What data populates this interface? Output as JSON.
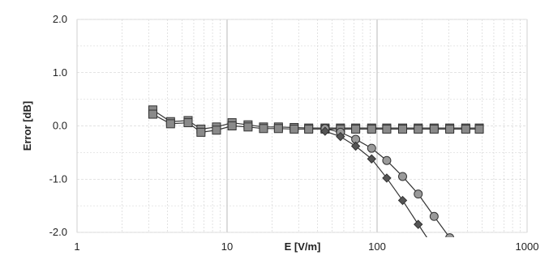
{
  "chart_data": {
    "type": "line",
    "xlabel": "E [V/m]",
    "ylabel": "Error [dB]",
    "xscale": "log",
    "xlim": [
      1,
      1000
    ],
    "ylim": [
      -2.0,
      2.0
    ],
    "x_tick_labels": [
      "1",
      "10",
      "100",
      "1000"
    ],
    "x_ticks": [
      1,
      10,
      100,
      1000
    ],
    "y_tick_labels": [
      "2.0",
      "1.0",
      "0.0",
      "-1.0",
      "-2.0"
    ],
    "y_ticks": [
      2,
      1,
      0,
      -1,
      -2
    ],
    "grid": true,
    "legend": false,
    "series": [
      {
        "marker": "square",
        "color": "#8a8a8a",
        "x": [
          3.2,
          4.2,
          5.5,
          6.7,
          8.5,
          10.8,
          13.8,
          17.5,
          22,
          28,
          35,
          45,
          57,
          72,
          92,
          116,
          148,
          188,
          240,
          305,
          390,
          480
        ],
        "y": [
          0.3,
          0.08,
          0.1,
          -0.06,
          -0.02,
          0.06,
          0.02,
          -0.02,
          -0.02,
          -0.03,
          -0.04,
          -0.04,
          -0.04,
          -0.04,
          -0.04,
          -0.04,
          -0.04,
          -0.04,
          -0.04,
          -0.04,
          -0.04,
          -0.04
        ]
      },
      {
        "marker": "square",
        "color": "#8a8a8a",
        "x": [
          3.2,
          4.2,
          5.5,
          6.7,
          8.5,
          10.8,
          13.8,
          17.5,
          22,
          28,
          35,
          45,
          57,
          72,
          92,
          116,
          148,
          188,
          240,
          305,
          390,
          480
        ],
        "y": [
          0.22,
          0.04,
          0.06,
          -0.12,
          -0.08,
          0.0,
          -0.02,
          -0.05,
          -0.05,
          -0.06,
          -0.06,
          -0.06,
          -0.06,
          -0.06,
          -0.06,
          -0.06,
          -0.06,
          -0.06,
          -0.06,
          -0.06,
          -0.06,
          -0.06
        ]
      },
      {
        "marker": "circle",
        "color": "#9a9a9a",
        "x": [
          45,
          57,
          72,
          92,
          116,
          148,
          188,
          240,
          305
        ],
        "y": [
          -0.05,
          -0.12,
          -0.25,
          -0.42,
          -0.65,
          -0.95,
          -1.28,
          -1.7,
          -2.1
        ]
      },
      {
        "marker": "diamond",
        "color": "#555555",
        "x": [
          45,
          57,
          72,
          92,
          116,
          148,
          188,
          240
        ],
        "y": [
          -0.1,
          -0.2,
          -0.38,
          -0.62,
          -0.98,
          -1.4,
          -1.85,
          -2.3
        ]
      }
    ]
  }
}
